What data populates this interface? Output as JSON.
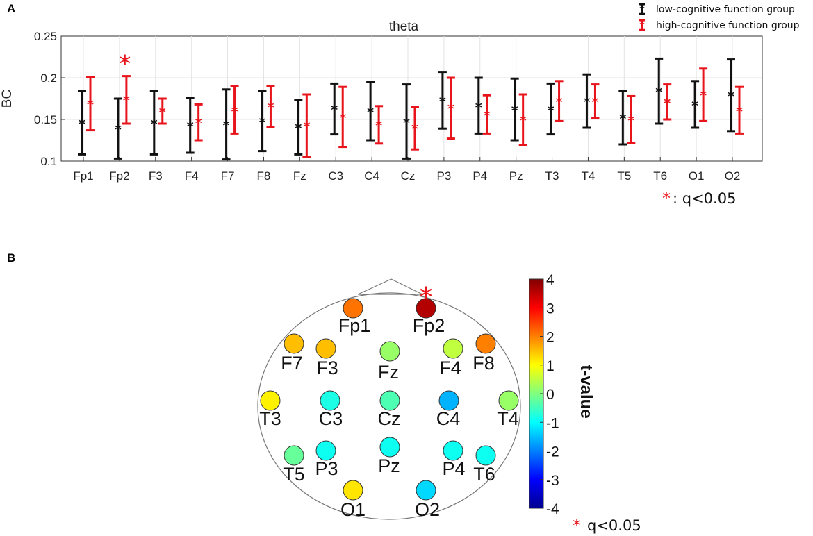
{
  "chart_data": [
    {
      "type": "errorbar",
      "panel": "A",
      "title": "theta",
      "xlabel": "",
      "ylabel": "BC",
      "ylim": [
        0.1,
        0.25
      ],
      "yticks": [
        "0.1",
        "0.15",
        "0.2",
        "0.25"
      ],
      "ytick_values": [
        0.1,
        0.15,
        0.2,
        0.25
      ],
      "grid": true,
      "categories": [
        "Fp1",
        "Fp2",
        "F3",
        "F4",
        "F7",
        "F8",
        "Fz",
        "C3",
        "C4",
        "Cz",
        "P3",
        "P4",
        "Pz",
        "T3",
        "T4",
        "T5",
        "T6",
        "O1",
        "O2"
      ],
      "series": [
        {
          "name": "low-cognitive function group",
          "color": "#111111",
          "mean": [
            0.146,
            0.139,
            0.146,
            0.143,
            0.144,
            0.148,
            0.141,
            0.163,
            0.16,
            0.147,
            0.173,
            0.166,
            0.162,
            0.162,
            0.172,
            0.152,
            0.184,
            0.168,
            0.179
          ],
          "lower": [
            0.108,
            0.103,
            0.108,
            0.11,
            0.102,
            0.112,
            0.108,
            0.132,
            0.125,
            0.103,
            0.139,
            0.133,
            0.125,
            0.132,
            0.14,
            0.12,
            0.145,
            0.14,
            0.136
          ],
          "upper": [
            0.184,
            0.175,
            0.184,
            0.176,
            0.186,
            0.184,
            0.173,
            0.193,
            0.195,
            0.192,
            0.207,
            0.2,
            0.199,
            0.193,
            0.204,
            0.184,
            0.223,
            0.196,
            0.222
          ]
        },
        {
          "name": "high-cognitive function group",
          "color": "#e8141b",
          "mean": [
            0.169,
            0.174,
            0.16,
            0.147,
            0.161,
            0.166,
            0.143,
            0.153,
            0.144,
            0.14,
            0.164,
            0.156,
            0.15,
            0.172,
            0.172,
            0.15,
            0.171,
            0.18,
            0.161
          ],
          "lower": [
            0.137,
            0.145,
            0.145,
            0.125,
            0.133,
            0.141,
            0.105,
            0.117,
            0.121,
            0.114,
            0.127,
            0.133,
            0.119,
            0.148,
            0.152,
            0.122,
            0.15,
            0.148,
            0.133
          ],
          "upper": [
            0.201,
            0.202,
            0.175,
            0.168,
            0.19,
            0.19,
            0.18,
            0.189,
            0.166,
            0.165,
            0.2,
            0.179,
            0.18,
            0.196,
            0.192,
            0.178,
            0.192,
            0.211,
            0.189
          ]
        }
      ],
      "significant": [
        "Fp2"
      ],
      "sig_symbol": "*",
      "sig_note_symbol": "*",
      "sig_note": ": q<0.05",
      "legend_position": "top-right (outside)"
    },
    {
      "type": "topomap",
      "panel": "B",
      "colorbar_title": "t-value",
      "colorbar_range": [
        -4,
        4
      ],
      "colorbar_ticks": [
        "4",
        "3",
        "2",
        "1",
        "0",
        "-1",
        "-2",
        "-3",
        "-4"
      ],
      "electrodes": [
        {
          "name": "Fp1",
          "t": 2.1
        },
        {
          "name": "Fp2",
          "t": 3.6
        },
        {
          "name": "F7",
          "t": 1.5
        },
        {
          "name": "F3",
          "t": 1.5
        },
        {
          "name": "Fz",
          "t": 0.2
        },
        {
          "name": "F4",
          "t": 0.5
        },
        {
          "name": "F8",
          "t": 2.0
        },
        {
          "name": "T3",
          "t": 1.1
        },
        {
          "name": "C3",
          "t": -0.8
        },
        {
          "name": "Cz",
          "t": -0.4
        },
        {
          "name": "C4",
          "t": -1.6
        },
        {
          "name": "T4",
          "t": 0.2
        },
        {
          "name": "T5",
          "t": -0.2
        },
        {
          "name": "P3",
          "t": -0.9
        },
        {
          "name": "Pz",
          "t": -0.9
        },
        {
          "name": "P4",
          "t": -0.9
        },
        {
          "name": "T6",
          "t": -0.9
        },
        {
          "name": "O1",
          "t": 1.2
        },
        {
          "name": "O2",
          "t": -1.3
        }
      ],
      "significant": [
        "Fp2"
      ],
      "sig_symbol": "*",
      "sig_note_symbol": "*",
      "sig_note": "q<0.05"
    }
  ],
  "panel_labels": {
    "a": "A",
    "b": "B"
  },
  "colors": {
    "black_series": "#111111",
    "red_series": "#e8141b",
    "grid": "#e3e3e3",
    "axis": "#333333"
  }
}
